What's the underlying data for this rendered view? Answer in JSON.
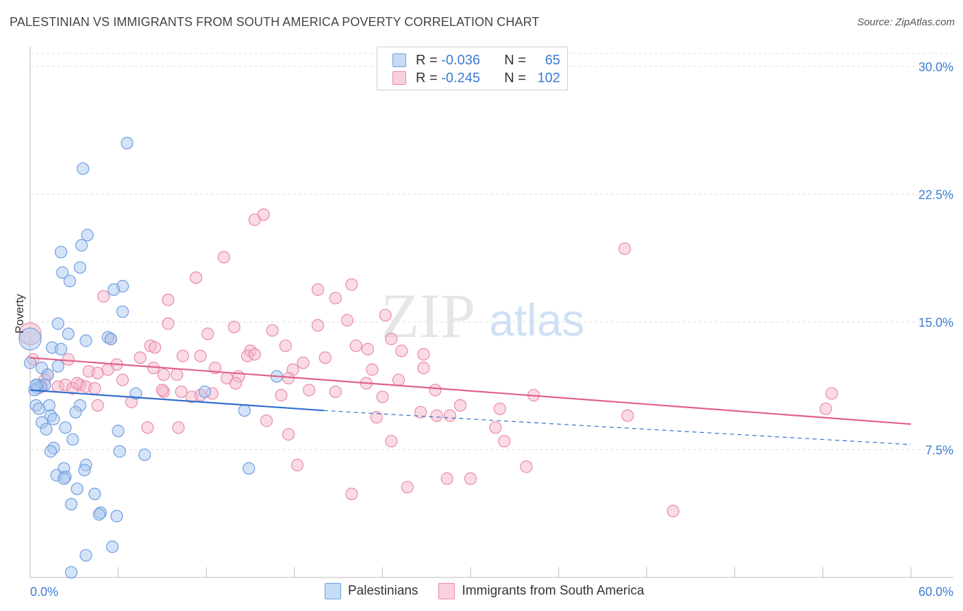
{
  "title": "PALESTINIAN VS IMMIGRANTS FROM SOUTH AMERICA POVERTY CORRELATION CHART",
  "source": "Source: ZipAtlas.com",
  "watermark": {
    "zip": "ZIP",
    "atlas": "atlas"
  },
  "colors": {
    "blue_fill": "#a9c8f0",
    "blue_stroke": "#6f9ee0",
    "blue_line": "#2f6fce",
    "pink_fill": "#f5b8cb",
    "pink_stroke": "#e88aa8",
    "pink_line": "#e0608a",
    "axis_label": "#3d7bd4",
    "grid": "#dddddd"
  },
  "legend": {
    "rows": [
      {
        "r_label": "R =",
        "r_value": "-0.036",
        "n_label": "N =",
        "n_value": "65",
        "series": "blue"
      },
      {
        "r_label": "R =",
        "r_value": "-0.245",
        "n_label": "N =",
        "n_value": "102",
        "series": "pink"
      }
    ]
  },
  "bottom_legend": [
    {
      "label": "Palestinians",
      "series": "blue"
    },
    {
      "label": "Immigrants from South America",
      "series": "pink"
    }
  ],
  "chart_data": {
    "type": "scatter",
    "title": "PALESTINIAN VS IMMIGRANTS FROM SOUTH AMERICA POVERTY CORRELATION CHART",
    "xlabel": "",
    "ylabel": "Poverty",
    "xlim": [
      0,
      60
    ],
    "ylim": [
      0,
      30
    ],
    "x_tick_labels": [
      {
        "value": 0,
        "label": "0.0%"
      },
      {
        "value": 60,
        "label": "60.0%"
      }
    ],
    "y_tick_labels": [
      {
        "value": 7.5,
        "label": "7.5%"
      },
      {
        "value": 15,
        "label": "15.0%"
      },
      {
        "value": 22.5,
        "label": "22.5%"
      },
      {
        "value": 30,
        "label": "30.0%"
      }
    ],
    "series": [
      {
        "name": "Palestinians",
        "color": "blue",
        "trend": {
          "x0": 0,
          "y0": 11.0,
          "x1": 20,
          "y1": 9.8,
          "dashed_to_x": 60,
          "dashed_to_y": 7.8
        },
        "points": [
          [
            6.6,
            25.5
          ],
          [
            3.6,
            24.0
          ],
          [
            3.9,
            20.1
          ],
          [
            3.5,
            19.5
          ],
          [
            2.1,
            19.1
          ],
          [
            3.4,
            18.2
          ],
          [
            2.2,
            17.9
          ],
          [
            2.7,
            17.4
          ],
          [
            6.3,
            17.1
          ],
          [
            5.7,
            16.9
          ],
          [
            6.3,
            15.6
          ],
          [
            1.9,
            14.9
          ],
          [
            2.6,
            14.3
          ],
          [
            3.8,
            13.9
          ],
          [
            5.3,
            14.1
          ],
          [
            5.5,
            14.0
          ],
          [
            1.5,
            13.5
          ],
          [
            2.1,
            13.4
          ],
          [
            0.0,
            14.0
          ],
          [
            0.0,
            12.6
          ],
          [
            0.8,
            12.3
          ],
          [
            1.9,
            12.4
          ],
          [
            1.2,
            11.9
          ],
          [
            0.5,
            11.3
          ],
          [
            1.0,
            11.3
          ],
          [
            0.7,
            11.2
          ],
          [
            0.5,
            11.1
          ],
          [
            0.3,
            11.0
          ],
          [
            0.4,
            10.1
          ],
          [
            1.3,
            10.1
          ],
          [
            3.4,
            10.1
          ],
          [
            3.1,
            9.7
          ],
          [
            0.6,
            9.9
          ],
          [
            1.4,
            9.5
          ],
          [
            1.6,
            9.3
          ],
          [
            0.8,
            9.1
          ],
          [
            1.1,
            8.7
          ],
          [
            2.4,
            8.8
          ],
          [
            6.0,
            8.6
          ],
          [
            2.9,
            8.1
          ],
          [
            1.6,
            7.6
          ],
          [
            1.4,
            7.4
          ],
          [
            6.1,
            7.4
          ],
          [
            7.8,
            7.2
          ],
          [
            3.8,
            6.6
          ],
          [
            3.7,
            6.3
          ],
          [
            2.3,
            6.4
          ],
          [
            1.8,
            6.0
          ],
          [
            2.4,
            5.9
          ],
          [
            2.3,
            5.8
          ],
          [
            3.2,
            5.2
          ],
          [
            4.4,
            4.9
          ],
          [
            2.8,
            4.3
          ],
          [
            4.8,
            3.8
          ],
          [
            4.7,
            3.7
          ],
          [
            5.9,
            3.6
          ],
          [
            3.8,
            1.3
          ],
          [
            5.6,
            1.8
          ],
          [
            2.8,
            0.3
          ],
          [
            11.9,
            10.9
          ],
          [
            14.6,
            9.8
          ],
          [
            16.8,
            11.8
          ],
          [
            14.9,
            6.4
          ],
          [
            7.2,
            10.8
          ],
          [
            0.4,
            11.3
          ]
        ]
      },
      {
        "name": "Immigrants from South America",
        "color": "pink",
        "trend": {
          "x0": 0,
          "y0": 12.9,
          "x1": 60,
          "y1": 9.0
        },
        "points": [
          [
            15.9,
            21.3
          ],
          [
            15.3,
            21.0
          ],
          [
            40.5,
            19.3
          ],
          [
            13.2,
            18.8
          ],
          [
            11.3,
            17.6
          ],
          [
            21.9,
            17.2
          ],
          [
            19.6,
            16.9
          ],
          [
            5.0,
            16.5
          ],
          [
            9.4,
            16.3
          ],
          [
            20.8,
            16.4
          ],
          [
            24.2,
            15.4
          ],
          [
            21.6,
            15.1
          ],
          [
            9.4,
            14.9
          ],
          [
            19.6,
            14.8
          ],
          [
            13.9,
            14.7
          ],
          [
            16.5,
            14.5
          ],
          [
            12.1,
            14.3
          ],
          [
            5.5,
            14.0
          ],
          [
            24.6,
            14.0
          ],
          [
            8.2,
            13.6
          ],
          [
            8.5,
            13.5
          ],
          [
            17.4,
            13.6
          ],
          [
            22.2,
            13.6
          ],
          [
            23.0,
            13.4
          ],
          [
            15.0,
            13.3
          ],
          [
            10.4,
            13.0
          ],
          [
            11.6,
            13.0
          ],
          [
            14.8,
            13.0
          ],
          [
            25.3,
            13.3
          ],
          [
            26.8,
            13.1
          ],
          [
            15.3,
            13.1
          ],
          [
            20.1,
            12.9
          ],
          [
            7.5,
            12.9
          ],
          [
            2.6,
            12.8
          ],
          [
            0.2,
            12.8
          ],
          [
            5.9,
            12.5
          ],
          [
            18.6,
            12.6
          ],
          [
            8.4,
            12.3
          ],
          [
            12.6,
            12.3
          ],
          [
            17.9,
            12.2
          ],
          [
            23.3,
            12.2
          ],
          [
            26.8,
            12.3
          ],
          [
            4.0,
            12.1
          ],
          [
            4.6,
            12.0
          ],
          [
            9.1,
            11.9
          ],
          [
            14.2,
            11.8
          ],
          [
            10.0,
            11.9
          ],
          [
            17.6,
            11.7
          ],
          [
            1.2,
            11.9
          ],
          [
            6.3,
            11.6
          ],
          [
            13.4,
            11.7
          ],
          [
            22.9,
            11.4
          ],
          [
            25.1,
            11.6
          ],
          [
            3.4,
            11.3
          ],
          [
            1.9,
            11.2
          ],
          [
            2.4,
            11.3
          ],
          [
            3.8,
            11.2
          ],
          [
            2.9,
            11.1
          ],
          [
            0.8,
            11.2
          ],
          [
            4.4,
            11.1
          ],
          [
            27.6,
            11.0
          ],
          [
            9.1,
            10.9
          ],
          [
            10.3,
            10.9
          ],
          [
            11.6,
            10.7
          ],
          [
            12.4,
            10.8
          ],
          [
            17.1,
            10.7
          ],
          [
            20.8,
            10.9
          ],
          [
            34.3,
            10.7
          ],
          [
            54.6,
            10.8
          ],
          [
            6.9,
            10.3
          ],
          [
            4.6,
            10.1
          ],
          [
            29.3,
            10.1
          ],
          [
            32.0,
            9.9
          ],
          [
            54.2,
            9.9
          ],
          [
            26.6,
            9.7
          ],
          [
            27.7,
            9.5
          ],
          [
            23.6,
            9.4
          ],
          [
            28.6,
            9.5
          ],
          [
            40.7,
            9.5
          ],
          [
            16.1,
            9.2
          ],
          [
            8.0,
            8.8
          ],
          [
            10.1,
            8.8
          ],
          [
            31.7,
            8.8
          ],
          [
            17.6,
            8.4
          ],
          [
            24.6,
            8.0
          ],
          [
            32.3,
            8.0
          ],
          [
            18.2,
            6.6
          ],
          [
            33.8,
            6.5
          ],
          [
            28.4,
            5.8
          ],
          [
            30.0,
            5.8
          ],
          [
            25.7,
            5.3
          ],
          [
            21.9,
            4.9
          ],
          [
            43.8,
            3.9
          ],
          [
            0.0,
            14.3
          ],
          [
            1.0,
            11.6
          ],
          [
            3.2,
            11.4
          ],
          [
            5.3,
            12.2
          ],
          [
            9.0,
            11.0
          ],
          [
            11.0,
            10.6
          ],
          [
            14.0,
            11.4
          ],
          [
            19.0,
            11.0
          ],
          [
            24.0,
            10.6
          ]
        ]
      }
    ]
  }
}
